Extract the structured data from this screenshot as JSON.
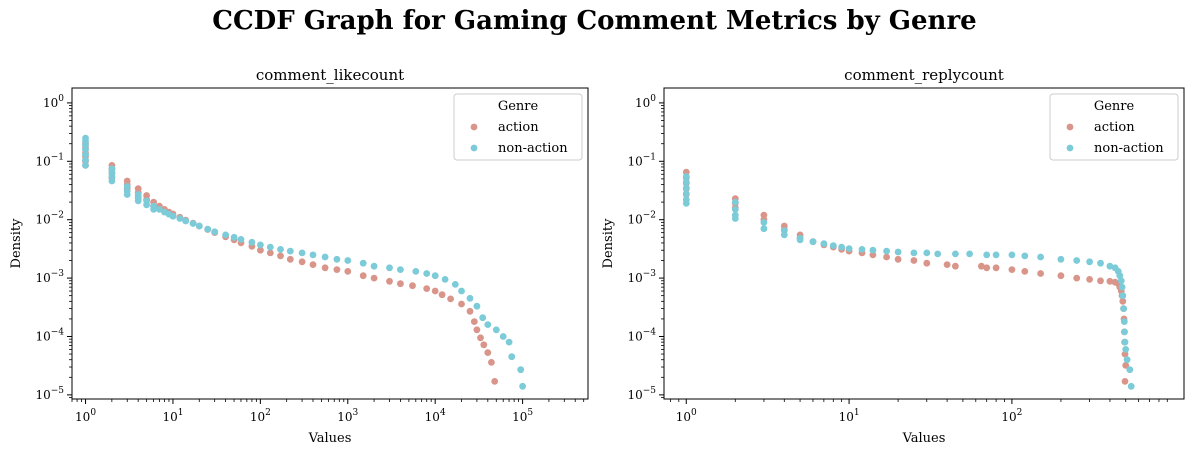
{
  "figure": {
    "title": "CCDF Graph for Gaming Comment Metrics by Genre"
  },
  "chart_data": [
    {
      "type": "scatter",
      "title": "comment_likecount",
      "xlabel": "Values",
      "ylabel": "Density",
      "xscale": "log",
      "yscale": "log",
      "xlim": [
        0.7,
        560000
      ],
      "ylim": [
        8.5e-06,
        1.8
      ],
      "xticks": [
        1,
        10,
        100,
        1000,
        10000,
        100000
      ],
      "xtick_labels": [
        "10^0",
        "10^1",
        "10^2",
        "10^3",
        "10^4",
        "10^5"
      ],
      "yticks": [
        1e-05,
        0.0001,
        0.001,
        0.01,
        0.1,
        1
      ],
      "ytick_labels": [
        "10^-5",
        "10^-4",
        "10^-3",
        "10^-2",
        "10^-1",
        "10^0"
      ],
      "grid": false,
      "legend": {
        "title": "Genre",
        "position": "upper right"
      },
      "series": [
        {
          "name": "action",
          "color": "#d9958a",
          "points": [
            [
              1,
              0.2
            ],
            [
              1,
              0.17
            ],
            [
              1,
              0.14
            ],
            [
              1,
              0.12
            ],
            [
              1,
              0.1
            ],
            [
              1,
              0.085
            ],
            [
              2,
              0.085
            ],
            [
              2,
              0.072
            ],
            [
              2,
              0.062
            ],
            [
              2,
              0.052
            ],
            [
              3,
              0.046
            ],
            [
              3,
              0.04
            ],
            [
              3,
              0.034
            ],
            [
              4,
              0.034
            ],
            [
              4,
              0.029
            ],
            [
              4,
              0.025
            ],
            [
              5,
              0.026
            ],
            [
              5,
              0.022
            ],
            [
              6,
              0.02
            ],
            [
              6,
              0.017
            ],
            [
              7,
              0.017
            ],
            [
              8,
              0.015
            ],
            [
              9,
              0.0135
            ],
            [
              10,
              0.0125
            ],
            [
              12,
              0.011
            ],
            [
              14,
              0.0098
            ],
            [
              17,
              0.0087
            ],
            [
              20,
              0.0078
            ],
            [
              25,
              0.0068
            ],
            [
              30,
              0.006
            ],
            [
              40,
              0.0051
            ],
            [
              50,
              0.0045
            ],
            [
              60,
              0.004
            ],
            [
              80,
              0.0035
            ],
            [
              100,
              0.003
            ],
            [
              130,
              0.0027
            ],
            [
              170,
              0.0024
            ],
            [
              220,
              0.0021
            ],
            [
              300,
              0.0019
            ],
            [
              400,
              0.0017
            ],
            [
              550,
              0.0015
            ],
            [
              750,
              0.0014
            ],
            [
              1000,
              0.0013
            ],
            [
              1500,
              0.0011
            ],
            [
              2000,
              0.001
            ],
            [
              3000,
              0.00088
            ],
            [
              4000,
              0.0008
            ],
            [
              5500,
              0.00074
            ],
            [
              8000,
              0.00066
            ],
            [
              10000,
              0.0006
            ],
            [
              12000,
              0.00052
            ],
            [
              15000,
              0.00044
            ],
            [
              20000,
              0.00036
            ],
            [
              25000,
              0.00027
            ],
            [
              28000,
              0.00018
            ],
            [
              30000,
              0.00013
            ],
            [
              33000,
              9.5e-05
            ],
            [
              36000,
              7.2e-05
            ],
            [
              40000,
              5.3e-05
            ],
            [
              44000,
              3.6e-05
            ],
            [
              48000,
              1.7e-05
            ]
          ]
        },
        {
          "name": "non-action",
          "color": "#7ccbd8",
          "points": [
            [
              1,
              0.25
            ],
            [
              1,
              0.22
            ],
            [
              1,
              0.19
            ],
            [
              1,
              0.16
            ],
            [
              1,
              0.13
            ],
            [
              1,
              0.105
            ],
            [
              1,
              0.085
            ],
            [
              2,
              0.075
            ],
            [
              2,
              0.064
            ],
            [
              2,
              0.055
            ],
            [
              2,
              0.046
            ],
            [
              3,
              0.037
            ],
            [
              3,
              0.031
            ],
            [
              3,
              0.027
            ],
            [
              4,
              0.027
            ],
            [
              4,
              0.023
            ],
            [
              4,
              0.021
            ],
            [
              5,
              0.021
            ],
            [
              5,
              0.018
            ],
            [
              6,
              0.017
            ],
            [
              6,
              0.015
            ],
            [
              7,
              0.015
            ],
            [
              8,
              0.0135
            ],
            [
              9,
              0.0124
            ],
            [
              10,
              0.0115
            ],
            [
              12,
              0.0105
            ],
            [
              14,
              0.0095
            ],
            [
              17,
              0.0086
            ],
            [
              20,
              0.0078
            ],
            [
              25,
              0.0069
            ],
            [
              30,
              0.0062
            ],
            [
              40,
              0.0055
            ],
            [
              50,
              0.005
            ],
            [
              60,
              0.0046
            ],
            [
              80,
              0.0041
            ],
            [
              100,
              0.0037
            ],
            [
              130,
              0.0034
            ],
            [
              170,
              0.0031
            ],
            [
              220,
              0.0029
            ],
            [
              300,
              0.0027
            ],
            [
              400,
              0.0025
            ],
            [
              550,
              0.0023
            ],
            [
              750,
              0.0021
            ],
            [
              1000,
              0.002
            ],
            [
              1500,
              0.0018
            ],
            [
              2000,
              0.0016
            ],
            [
              3000,
              0.0015
            ],
            [
              4000,
              0.0014
            ],
            [
              6000,
              0.0013
            ],
            [
              8000,
              0.0012
            ],
            [
              10000,
              0.0011
            ],
            [
              13000,
              0.00095
            ],
            [
              17000,
              0.00078
            ],
            [
              20000,
              0.0006
            ],
            [
              25000,
              0.00045
            ],
            [
              30000,
              0.00033
            ],
            [
              35000,
              0.00021
            ],
            [
              40000,
              0.00016
            ],
            [
              50000,
              0.00013
            ],
            [
              60000,
              0.0001
            ],
            [
              70000,
              8e-05
            ],
            [
              75000,
              4.5e-05
            ],
            [
              95000,
              2.7e-05
            ],
            [
              100000,
              1.4e-05
            ]
          ]
        }
      ]
    },
    {
      "type": "scatter",
      "title": "comment_replycount",
      "xlabel": "Values",
      "ylabel": "Density",
      "xscale": "log",
      "yscale": "log",
      "xlim": [
        0.73,
        1140
      ],
      "ylim": [
        8.5e-06,
        1.8
      ],
      "xticks": [
        1,
        10,
        100
      ],
      "xtick_labels": [
        "10^0",
        "10^1",
        "10^2"
      ],
      "yticks": [
        1e-05,
        0.0001,
        0.001,
        0.01,
        0.1,
        1
      ],
      "ytick_labels": [
        "10^-5",
        "10^-4",
        "10^-3",
        "10^-2",
        "10^-1",
        "10^0"
      ],
      "grid": false,
      "legend": {
        "title": "Genre",
        "position": "upper right"
      },
      "series": [
        {
          "name": "action",
          "color": "#d9958a",
          "points": [
            [
              1,
              0.065
            ],
            [
              1,
              0.052
            ],
            [
              1,
              0.042
            ],
            [
              1,
              0.034
            ],
            [
              1,
              0.027
            ],
            [
              2,
              0.023
            ],
            [
              2,
              0.019
            ],
            [
              2,
              0.016
            ],
            [
              3,
              0.012
            ],
            [
              3,
              0.01
            ],
            [
              4,
              0.0078
            ],
            [
              4,
              0.0068
            ],
            [
              5,
              0.0055
            ],
            [
              5,
              0.0049
            ],
            [
              6,
              0.0042
            ],
            [
              7,
              0.0037
            ],
            [
              8,
              0.0034
            ],
            [
              9,
              0.0031
            ],
            [
              10,
              0.0029
            ],
            [
              12,
              0.0027
            ],
            [
              14,
              0.0025
            ],
            [
              17,
              0.0023
            ],
            [
              20,
              0.0021
            ],
            [
              25,
              0.002
            ],
            [
              30,
              0.0018
            ],
            [
              40,
              0.0017
            ],
            [
              45,
              0.0016
            ],
            [
              65,
              0.0016
            ],
            [
              70,
              0.0015
            ],
            [
              80,
              0.0015
            ],
            [
              100,
              0.0014
            ],
            [
              120,
              0.0013
            ],
            [
              150,
              0.0012
            ],
            [
              200,
              0.0011
            ],
            [
              250,
              0.001
            ],
            [
              300,
              0.00095
            ],
            [
              350,
              0.0009
            ],
            [
              400,
              0.00088
            ],
            [
              430,
              0.00085
            ],
            [
              450,
              0.0008
            ],
            [
              460,
              0.0007
            ],
            [
              470,
              0.0006
            ],
            [
              475,
              0.0005
            ],
            [
              480,
              0.0004
            ],
            [
              485,
              0.0003
            ],
            [
              488,
              0.0002
            ],
            [
              490,
              0.00012
            ],
            [
              492,
              8e-05
            ],
            [
              495,
              5e-05
            ],
            [
              500,
              3.2e-05
            ],
            [
              495,
              1.7e-05
            ]
          ]
        },
        {
          "name": "non-action",
          "color": "#7ccbd8",
          "points": [
            [
              1,
              0.055
            ],
            [
              1,
              0.044
            ],
            [
              1,
              0.035
            ],
            [
              1,
              0.028
            ],
            [
              1,
              0.022
            ],
            [
              1,
              0.019
            ],
            [
              2,
              0.02
            ],
            [
              2,
              0.015
            ],
            [
              2,
              0.012
            ],
            [
              2,
              0.0105
            ],
            [
              3,
              0.009
            ],
            [
              3,
              0.007
            ],
            [
              4,
              0.0065
            ],
            [
              4,
              0.0055
            ],
            [
              5,
              0.0048
            ],
            [
              5,
              0.0045
            ],
            [
              6,
              0.0042
            ],
            [
              7,
              0.0039
            ],
            [
              8,
              0.0036
            ],
            [
              9,
              0.0034
            ],
            [
              10,
              0.0032
            ],
            [
              12,
              0.0031
            ],
            [
              14,
              0.003
            ],
            [
              17,
              0.0029
            ],
            [
              20,
              0.0028
            ],
            [
              25,
              0.0027
            ],
            [
              30,
              0.0027
            ],
            [
              35,
              0.0026
            ],
            [
              45,
              0.0026
            ],
            [
              55,
              0.0026
            ],
            [
              70,
              0.0025
            ],
            [
              80,
              0.0025
            ],
            [
              100,
              0.0025
            ],
            [
              120,
              0.0024
            ],
            [
              150,
              0.0023
            ],
            [
              200,
              0.0021
            ],
            [
              250,
              0.002
            ],
            [
              300,
              0.0019
            ],
            [
              350,
              0.0018
            ],
            [
              400,
              0.0016
            ],
            [
              430,
              0.0015
            ],
            [
              450,
              0.0013
            ],
            [
              460,
              0.0011
            ],
            [
              470,
              0.0009
            ],
            [
              475,
              0.0007
            ],
            [
              480,
              0.0005
            ],
            [
              485,
              0.0003
            ],
            [
              490,
              0.00018
            ],
            [
              492,
              0.00012
            ],
            [
              495,
              8e-05
            ],
            [
              500,
              6e-05
            ],
            [
              510,
              4e-05
            ],
            [
              530,
              2.7e-05
            ],
            [
              540,
              1.4e-05
            ]
          ]
        }
      ]
    }
  ]
}
